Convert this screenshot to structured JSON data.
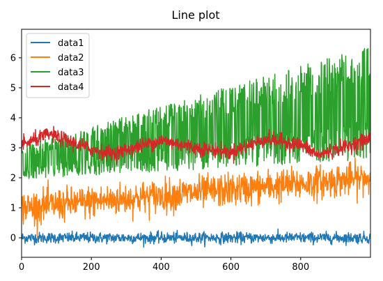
{
  "chart_data": {
    "type": "line",
    "title": "Line plot",
    "xlabel": "",
    "ylabel": "",
    "xlim": [
      0,
      1000
    ],
    "ylim": [
      -0.65,
      6.95
    ],
    "x_ticks": [
      0,
      200,
      400,
      600,
      800
    ],
    "y_ticks": [
      0,
      1,
      2,
      3,
      4,
      5,
      6
    ],
    "grid": false,
    "legend": "top-left",
    "n_points": 1000,
    "series": [
      {
        "name": "data1",
        "color": "#1f77b4",
        "trend": [
          [
            0,
            0.0
          ],
          [
            1000,
            0.0
          ]
        ],
        "noise_amplitude": 0.15
      },
      {
        "name": "data2",
        "color": "#ff7f0e",
        "trend": [
          [
            0,
            1.0
          ],
          [
            1000,
            2.0
          ]
        ],
        "noise_amplitude": 0.45
      },
      {
        "name": "data3",
        "color": "#2ca02c",
        "trend": [
          [
            0,
            2.5
          ],
          [
            1000,
            4.5
          ]
        ],
        "noise_amplitude": [
          0.55,
          1.9
        ]
      },
      {
        "name": "data4",
        "color": "#d62728",
        "trend": [
          [
            0,
            3.1
          ],
          [
            80,
            3.45
          ],
          [
            200,
            2.95
          ],
          [
            260,
            2.8
          ],
          [
            400,
            3.25
          ],
          [
            500,
            3.0
          ],
          [
            600,
            2.85
          ],
          [
            700,
            3.3
          ],
          [
            800,
            3.1
          ],
          [
            850,
            2.75
          ],
          [
            1000,
            3.3
          ]
        ],
        "noise_amplitude": 0.2
      }
    ]
  }
}
